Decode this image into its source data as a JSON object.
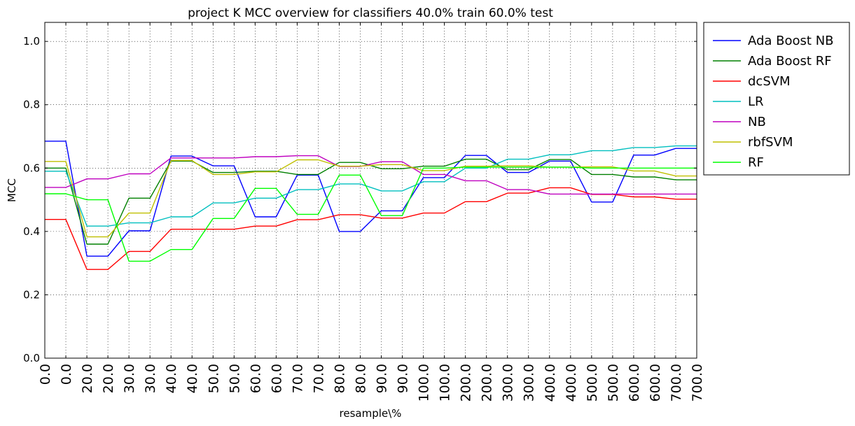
{
  "chart_data": {
    "type": "line",
    "title": "project K MCC overview for classifiers 40.0% train 60.0% test",
    "xlabel": "resample\\%",
    "ylabel": "MCC",
    "ylim": [
      0.0,
      1.06
    ],
    "yticks": [
      "0.0",
      "0.2",
      "0.4",
      "0.6",
      "0.8",
      "1.0"
    ],
    "categories": [
      "0.0",
      "0.0",
      "20.0",
      "20.0",
      "30.0",
      "30.0",
      "40.0",
      "40.0",
      "50.0",
      "50.0",
      "60.0",
      "60.0",
      "70.0",
      "70.0",
      "80.0",
      "80.0",
      "90.0",
      "90.0",
      "100.0",
      "100.0",
      "200.0",
      "200.0",
      "300.0",
      "300.0",
      "400.0",
      "400.0",
      "500.0",
      "500.0",
      "600.0",
      "600.0",
      "700.0",
      "700.0"
    ],
    "grid": true,
    "legend_position": "outside-right",
    "series": [
      {
        "name": "Ada Boost NB",
        "color": "#0000ff",
        "values": [
          0.685,
          0.685,
          0.322,
          0.322,
          0.402,
          0.402,
          0.638,
          0.638,
          0.607,
          0.607,
          0.446,
          0.446,
          0.578,
          0.578,
          0.4,
          0.4,
          0.465,
          0.465,
          0.57,
          0.57,
          0.64,
          0.64,
          0.586,
          0.586,
          0.622,
          0.622,
          0.493,
          0.493,
          0.641,
          0.641,
          0.662,
          0.662
        ]
      },
      {
        "name": "Ada Boost RF",
        "color": "#008000",
        "values": [
          0.6,
          0.6,
          0.36,
          0.36,
          0.505,
          0.505,
          0.622,
          0.622,
          0.586,
          0.586,
          0.59,
          0.59,
          0.58,
          0.58,
          0.618,
          0.618,
          0.598,
          0.598,
          0.606,
          0.606,
          0.628,
          0.628,
          0.595,
          0.595,
          0.627,
          0.627,
          0.58,
          0.58,
          0.572,
          0.572,
          0.563,
          0.563
        ]
      },
      {
        "name": "dcSVM",
        "color": "#ff0000",
        "values": [
          0.438,
          0.438,
          0.28,
          0.28,
          0.337,
          0.337,
          0.407,
          0.407,
          0.407,
          0.407,
          0.417,
          0.417,
          0.437,
          0.437,
          0.453,
          0.453,
          0.442,
          0.442,
          0.458,
          0.458,
          0.494,
          0.494,
          0.521,
          0.521,
          0.538,
          0.538,
          0.517,
          0.517,
          0.509,
          0.509,
          0.502,
          0.502
        ]
      },
      {
        "name": "LR",
        "color": "#00bfbf",
        "values": [
          0.59,
          0.59,
          0.417,
          0.417,
          0.427,
          0.427,
          0.446,
          0.446,
          0.49,
          0.49,
          0.505,
          0.505,
          0.532,
          0.532,
          0.55,
          0.55,
          0.528,
          0.528,
          0.557,
          0.557,
          0.6,
          0.6,
          0.628,
          0.628,
          0.642,
          0.642,
          0.655,
          0.655,
          0.665,
          0.665,
          0.67,
          0.67
        ]
      },
      {
        "name": "NB",
        "color": "#bf00bf",
        "values": [
          0.539,
          0.539,
          0.566,
          0.566,
          0.582,
          0.582,
          0.632,
          0.632,
          0.632,
          0.632,
          0.636,
          0.636,
          0.639,
          0.639,
          0.605,
          0.605,
          0.62,
          0.62,
          0.58,
          0.58,
          0.56,
          0.56,
          0.532,
          0.532,
          0.518,
          0.518,
          0.518,
          0.518,
          0.518,
          0.518,
          0.518,
          0.518
        ]
      },
      {
        "name": "rbfSVM",
        "color": "#bfbf00",
        "values": [
          0.621,
          0.621,
          0.383,
          0.383,
          0.458,
          0.458,
          0.624,
          0.624,
          0.58,
          0.58,
          0.588,
          0.588,
          0.626,
          0.626,
          0.606,
          0.606,
          0.611,
          0.611,
          0.592,
          0.592,
          0.606,
          0.606,
          0.607,
          0.607,
          0.603,
          0.603,
          0.604,
          0.604,
          0.591,
          0.591,
          0.575,
          0.575
        ]
      },
      {
        "name": "RF",
        "color": "#00ff00",
        "values": [
          0.519,
          0.519,
          0.5,
          0.5,
          0.306,
          0.306,
          0.343,
          0.343,
          0.441,
          0.441,
          0.536,
          0.536,
          0.454,
          0.454,
          0.578,
          0.578,
          0.45,
          0.45,
          0.6,
          0.6,
          0.603,
          0.603,
          0.603,
          0.603,
          0.603,
          0.603,
          0.6,
          0.6,
          0.6,
          0.6,
          0.6,
          0.6
        ]
      }
    ]
  }
}
